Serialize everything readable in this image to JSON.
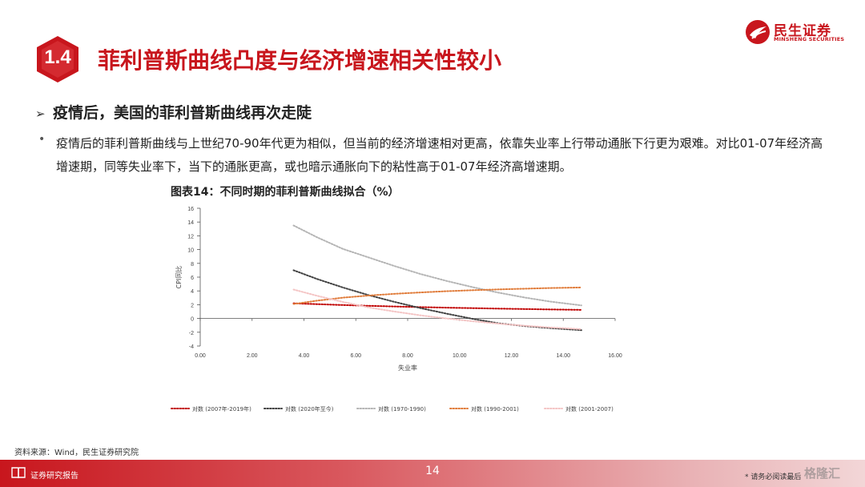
{
  "brand": {
    "name_cn": "民生证券",
    "name_en": "MINSHENG SECURITIES",
    "color": "#c8161d"
  },
  "section": {
    "number": "1.4",
    "title": "菲利普斯曲线凸度与经济增速相关性较小"
  },
  "subheading": {
    "arrow": "➢",
    "text": "疫情后，美国的菲利普斯曲线再次走陡"
  },
  "bullet": {
    "dot": "•",
    "text": "疫情后的菲利普斯曲线与上世纪70-90年代更为相似，但当前的经济增速相对更高，依靠失业率上行带动通胀下行更为艰难。对比01-07年经济高增速期，同等失业率下，当下的通胀更高，或也暗示通胀向下的粘性高于01-07年经济高增速期。"
  },
  "chart_title": "图表14：不同时期的菲利普斯曲线拟合（%）",
  "chart_data": {
    "type": "line",
    "xlabel": "失业率",
    "ylabel": "CPI同比",
    "xlim": [
      0,
      16
    ],
    "ylim": [
      -4,
      16
    ],
    "x_ticks": [
      "0.00",
      "2.00",
      "4.00",
      "6.00",
      "8.00",
      "10.00",
      "12.00",
      "14.00",
      "16.00"
    ],
    "y_ticks": [
      "-4",
      "-2",
      "0",
      "2",
      "4",
      "6",
      "8",
      "10",
      "12",
      "14",
      "16"
    ],
    "legend_position": "bottom",
    "line_style": "dotted",
    "series": [
      {
        "name": "对数 (2007年-2019年)",
        "color": "#c00000",
        "x": [
          3.6,
          4.5,
          5.5,
          6.5,
          7.5,
          8.5,
          9.5,
          10.5,
          11.5,
          12.5,
          13.5,
          14.7
        ],
        "y": [
          2.2,
          2.08,
          1.95,
          1.84,
          1.74,
          1.65,
          1.57,
          1.5,
          1.43,
          1.37,
          1.31,
          1.25
        ]
      },
      {
        "name": "对数 (2020年至今)",
        "color": "#404040",
        "x": [
          3.6,
          4.5,
          5.5,
          6.5,
          7.5,
          8.5,
          9.5,
          10.5,
          11.5,
          12.5,
          13.5,
          14.7
        ],
        "y": [
          7.0,
          5.74,
          4.5,
          3.38,
          2.4,
          1.5,
          0.7,
          -0.05,
          -0.7,
          -1.1,
          -1.4,
          -1.7
        ]
      },
      {
        "name": "对数 (1970-1990)",
        "color": "#b4b4b4",
        "x": [
          3.6,
          4.5,
          5.5,
          6.5,
          7.5,
          8.5,
          9.5,
          10.5,
          11.5,
          12.5,
          13.5,
          14.7
        ],
        "y": [
          13.5,
          11.8,
          10.1,
          8.85,
          7.6,
          6.45,
          5.45,
          4.55,
          3.75,
          3.05,
          2.45,
          1.9
        ]
      },
      {
        "name": "对数 (1990-2001)",
        "color": "#e07b39",
        "x": [
          3.6,
          4.5,
          5.5,
          6.5,
          7.5,
          8.5,
          9.5,
          10.5,
          11.5,
          12.5,
          13.5,
          14.7
        ],
        "y": [
          2.1,
          2.58,
          3.02,
          3.33,
          3.58,
          3.78,
          3.96,
          4.1,
          4.22,
          4.32,
          4.42,
          4.5
        ]
      },
      {
        "name": "对数 (2001-2007)",
        "color": "#f4c4c4",
        "x": [
          3.6,
          4.5,
          5.5,
          6.5,
          7.5,
          8.5,
          9.5,
          10.5,
          11.5,
          12.5,
          13.5,
          14.7
        ],
        "y": [
          4.2,
          3.3,
          2.4,
          1.6,
          1.0,
          0.45,
          0.0,
          -0.4,
          -0.75,
          -1.05,
          -1.3,
          -1.55
        ]
      }
    ]
  },
  "source": "资料来源：Wind，民生证券研究院",
  "footer": {
    "label": "证券研究报告",
    "page": "14",
    "note": "* 请务必阅读最后",
    "watermark": "格隆汇"
  }
}
